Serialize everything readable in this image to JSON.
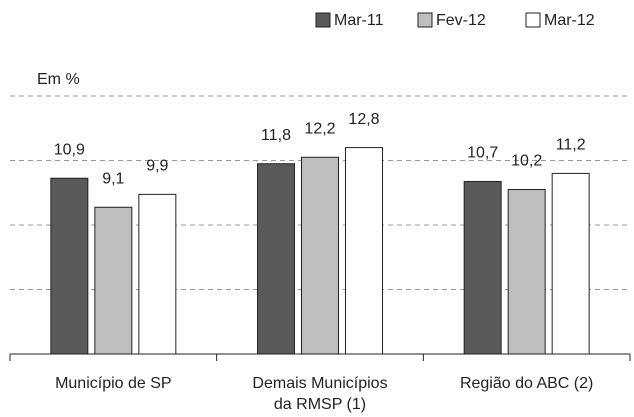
{
  "chart_data": {
    "type": "bar",
    "y_label": "Em %",
    "categories": [
      "Município de SP",
      "Demais Municípios\nda RMSP (1)",
      "Região do ABC (2)"
    ],
    "series": [
      {
        "name": "Mar-11",
        "color": "#595959",
        "values": [
          10.9,
          11.8,
          10.7
        ],
        "value_labels": [
          "10,9",
          "11,8",
          "10,7"
        ]
      },
      {
        "name": "Fev-12",
        "color": "#bfbfbf",
        "values": [
          9.1,
          12.2,
          10.2
        ],
        "value_labels": [
          "9,1",
          "12,2",
          "10,2"
        ]
      },
      {
        "name": "Mar-12",
        "color": "#ffffff",
        "values": [
          9.9,
          12.8,
          11.2
        ],
        "value_labels": [
          "9,9",
          "12,8",
          "11,2"
        ]
      }
    ],
    "ylim": [
      0,
      16
    ],
    "yticks": [
      4,
      8,
      12,
      16
    ],
    "grid": true,
    "legend": "top-right"
  }
}
